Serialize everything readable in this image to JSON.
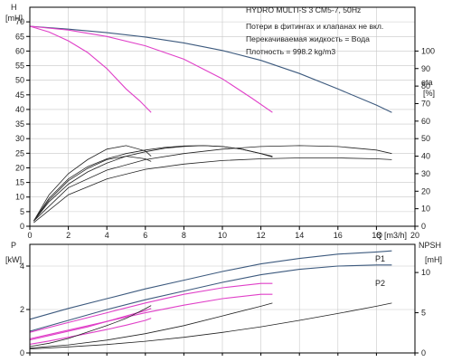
{
  "chart_data": [
    {
      "id": "top",
      "type": "line",
      "annotations": {
        "title": "HYDRO MULTI-S 3 CM5-7, 50Hz",
        "line1": "Потери в фитингах и клапанах не вкл.",
        "line2": "Перекачиваемая жидкость = Вода",
        "line3": "Плотность = 998.2 kg/m3"
      },
      "xlabel": "Q",
      "xunit": "[m3/h]",
      "ylabel": "H",
      "yunit": "[mH]",
      "y2label": "eta",
      "y2unit": "[%]",
      "xlim": [
        0,
        20
      ],
      "ylim": [
        0,
        75
      ],
      "y2lim": [
        0,
        125
      ],
      "x_ticks": [
        "0",
        "2",
        "4",
        "6",
        "8",
        "10",
        "12",
        "14",
        "16",
        "18",
        "20"
      ],
      "y_ticks": [
        "0",
        "5",
        "10",
        "15",
        "20",
        "25",
        "30",
        "35",
        "40",
        "45",
        "50",
        "55",
        "60",
        "65",
        "70"
      ],
      "y2_ticks": [
        "0",
        "10",
        "20",
        "30",
        "40",
        "50",
        "60",
        "70",
        "80",
        "90",
        "100"
      ],
      "grid": true,
      "colors": {
        "head_blue": "#3d5a7e",
        "head_magenta": "#e040c8",
        "eta": "#222222"
      },
      "head_curves": [
        {
          "color": "blue",
          "x": [
            0,
            2,
            4,
            6,
            8,
            10,
            12,
            14,
            16,
            18,
            18.8
          ],
          "y": [
            68.5,
            67.5,
            66.3,
            64.8,
            62.8,
            60.2,
            56.8,
            52.3,
            47.0,
            41.5,
            39.0
          ]
        },
        {
          "color": "magenta",
          "x": [
            0,
            2,
            4,
            6,
            8,
            10,
            11.5,
            12.6
          ],
          "y": [
            68.5,
            67.2,
            65.0,
            61.8,
            57.2,
            50.5,
            44.0,
            39.0
          ]
        },
        {
          "color": "magenta",
          "x": [
            0,
            1,
            2,
            3,
            4,
            5,
            5.7,
            6.3
          ],
          "y": [
            68.5,
            66.5,
            63.5,
            59.5,
            54.0,
            47.0,
            43.0,
            39.0
          ]
        }
      ],
      "eta_curves": [
        {
          "x": [
            0.2,
            1,
            2,
            3,
            4,
            5,
            6,
            7,
            8,
            9,
            10,
            11,
            12,
            12.6
          ],
          "y": [
            3,
            16,
            27,
            34,
            38.5,
            41.5,
            43.5,
            45,
            45.8,
            46,
            45.5,
            44,
            41.5,
            39.5
          ]
        },
        {
          "x": [
            0.2,
            1,
            2,
            3,
            4,
            5,
            6,
            7,
            8,
            9,
            10,
            11,
            12,
            12.6
          ],
          "y": [
            3,
            14,
            24,
            31,
            36,
            40,
            42.5,
            44.5,
            45.5,
            46,
            45.5,
            44,
            41.5,
            40
          ]
        },
        {
          "x": [
            0.2,
            2,
            4,
            6,
            8,
            10,
            12,
            14,
            16,
            18,
            18.8
          ],
          "y": [
            3,
            22,
            32,
            38,
            41.5,
            44,
            45.5,
            46,
            45.5,
            43.5,
            41.5
          ]
        },
        {
          "x": [
            0.2,
            2,
            4,
            6,
            8,
            10,
            12,
            14,
            16,
            18,
            18.8
          ],
          "y": [
            2,
            18,
            27,
            32.5,
            35.5,
            37.5,
            38.5,
            39,
            39,
            38.5,
            38
          ]
        },
        {
          "x": [
            0.2,
            1,
            2,
            3,
            4,
            5,
            6,
            6.3
          ],
          "y": [
            3,
            18,
            30,
            38,
            44,
            46,
            43,
            40
          ]
        },
        {
          "x": [
            0.2,
            1,
            2,
            3,
            4,
            5,
            6,
            6.3
          ],
          "y": [
            3,
            15,
            26,
            33,
            38,
            40,
            38.5,
            37
          ]
        }
      ]
    },
    {
      "id": "bottom",
      "type": "line",
      "xlim": [
        0,
        20
      ],
      "ylim": [
        0,
        5
      ],
      "y2lim": [
        0,
        13.5
      ],
      "ylabel": "P",
      "yunit": "[kW]",
      "y2label": "NPSH",
      "y2unit": "[mH]",
      "y_ticks": [
        "0",
        "2",
        "4"
      ],
      "y2_ticks": [
        "0",
        "5",
        "10"
      ],
      "grid": true,
      "colors": {
        "blue": "#3d5a7e",
        "magenta": "#e040c8",
        "npsh": "#222222"
      },
      "power_series": [
        {
          "name": "P1",
          "color": "blue",
          "x": [
            0,
            2,
            4,
            6,
            8,
            10,
            12,
            14,
            16,
            18,
            18.8
          ],
          "y": [
            1.55,
            2.05,
            2.5,
            2.95,
            3.35,
            3.75,
            4.1,
            4.35,
            4.55,
            4.65,
            4.7
          ]
        },
        {
          "name": "P2",
          "color": "blue",
          "x": [
            0,
            2,
            4,
            6,
            8,
            10,
            12,
            14,
            16,
            18,
            18.8
          ],
          "y": [
            1.0,
            1.5,
            2.0,
            2.45,
            2.85,
            3.25,
            3.6,
            3.85,
            4.0,
            4.05,
            4.05
          ]
        },
        {
          "color": "magenta",
          "x": [
            0,
            2,
            4,
            6,
            8,
            10,
            12,
            12.6
          ],
          "y": [
            0.95,
            1.4,
            1.85,
            2.3,
            2.7,
            3.0,
            3.2,
            3.2
          ]
        },
        {
          "color": "magenta",
          "x": [
            0,
            2,
            4,
            6,
            8,
            10,
            12,
            12.6
          ],
          "y": [
            0.65,
            1.05,
            1.45,
            1.85,
            2.2,
            2.5,
            2.7,
            2.7
          ]
        },
        {
          "color": "magenta",
          "x": [
            0,
            1,
            2,
            3,
            4,
            5,
            6,
            6.3
          ],
          "y": [
            0.6,
            0.8,
            1.0,
            1.2,
            1.45,
            1.7,
            1.95,
            2.05
          ]
        },
        {
          "color": "magenta",
          "x": [
            0,
            1,
            2,
            3,
            4,
            5,
            6,
            6.3
          ],
          "y": [
            0.4,
            0.55,
            0.72,
            0.9,
            1.08,
            1.28,
            1.5,
            1.6
          ]
        }
      ],
      "npsh_curves": [
        {
          "x": [
            0,
            2,
            4,
            6,
            8,
            10,
            12,
            12.6
          ],
          "y": [
            0.6,
            1.0,
            1.6,
            2.4,
            3.4,
            4.6,
            5.8,
            6.2
          ]
        },
        {
          "x": [
            0,
            2,
            4,
            6,
            8,
            10,
            12,
            14,
            16,
            18,
            18.8
          ],
          "y": [
            0.5,
            0.75,
            1.05,
            1.45,
            1.95,
            2.55,
            3.25,
            4.05,
            4.9,
            5.8,
            6.2
          ]
        },
        {
          "x": [
            0,
            1,
            2,
            3,
            4,
            5,
            6,
            6.3
          ],
          "y": [
            0.8,
            1.2,
            1.8,
            2.6,
            3.4,
            4.3,
            5.5,
            5.9
          ]
        }
      ]
    }
  ]
}
